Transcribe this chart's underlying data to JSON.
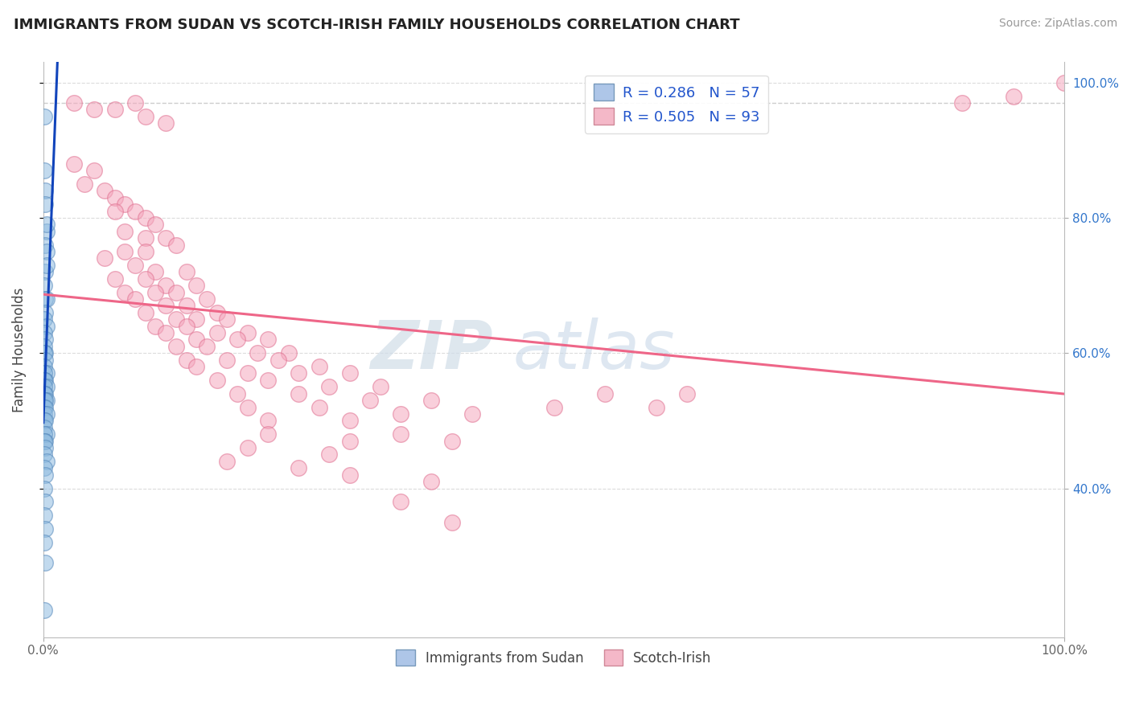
{
  "title": "IMMIGRANTS FROM SUDAN VS SCOTCH-IRISH FAMILY HOUSEHOLDS CORRELATION CHART",
  "source": "Source: ZipAtlas.com",
  "ylabel": "Family Households",
  "blue_color": "#90bce0",
  "pink_color": "#f5a8be",
  "blue_edge": "#5588bb",
  "pink_edge": "#e07090",
  "trend_blue": "#1144bb",
  "trend_pink": "#ee6688",
  "watermark_zip": "ZIP",
  "watermark_atlas": "atlas",
  "sudan_points": [
    [
      0.001,
      0.95
    ],
    [
      0.001,
      0.87
    ],
    [
      0.002,
      0.84
    ],
    [
      0.002,
      0.82
    ],
    [
      0.003,
      0.78
    ],
    [
      0.003,
      0.79
    ],
    [
      0.002,
      0.76
    ],
    [
      0.003,
      0.75
    ],
    [
      0.002,
      0.72
    ],
    [
      0.003,
      0.73
    ],
    [
      0.001,
      0.7
    ],
    [
      0.002,
      0.68
    ],
    [
      0.003,
      0.68
    ],
    [
      0.002,
      0.66
    ],
    [
      0.001,
      0.65
    ],
    [
      0.003,
      0.64
    ],
    [
      0.001,
      0.63
    ],
    [
      0.002,
      0.62
    ],
    [
      0.001,
      0.61
    ],
    [
      0.002,
      0.6
    ],
    [
      0.001,
      0.6
    ],
    [
      0.002,
      0.59
    ],
    [
      0.001,
      0.58
    ],
    [
      0.003,
      0.57
    ],
    [
      0.001,
      0.57
    ],
    [
      0.002,
      0.56
    ],
    [
      0.001,
      0.56
    ],
    [
      0.003,
      0.55
    ],
    [
      0.001,
      0.55
    ],
    [
      0.002,
      0.54
    ],
    [
      0.001,
      0.54
    ],
    [
      0.003,
      0.53
    ],
    [
      0.001,
      0.53
    ],
    [
      0.002,
      0.53
    ],
    [
      0.001,
      0.52
    ],
    [
      0.002,
      0.52
    ],
    [
      0.001,
      0.51
    ],
    [
      0.003,
      0.51
    ],
    [
      0.001,
      0.5
    ],
    [
      0.002,
      0.5
    ],
    [
      0.001,
      0.49
    ],
    [
      0.003,
      0.48
    ],
    [
      0.001,
      0.48
    ],
    [
      0.002,
      0.47
    ],
    [
      0.001,
      0.47
    ],
    [
      0.002,
      0.46
    ],
    [
      0.001,
      0.45
    ],
    [
      0.003,
      0.44
    ],
    [
      0.001,
      0.43
    ],
    [
      0.002,
      0.42
    ],
    [
      0.001,
      0.4
    ],
    [
      0.002,
      0.38
    ],
    [
      0.001,
      0.36
    ],
    [
      0.002,
      0.34
    ],
    [
      0.001,
      0.32
    ],
    [
      0.002,
      0.29
    ],
    [
      0.001,
      0.22
    ]
  ],
  "scotch_points": [
    [
      0.03,
      0.97
    ],
    [
      0.05,
      0.96
    ],
    [
      0.07,
      0.96
    ],
    [
      0.09,
      0.97
    ],
    [
      0.1,
      0.95
    ],
    [
      0.12,
      0.94
    ],
    [
      0.03,
      0.88
    ],
    [
      0.05,
      0.87
    ],
    [
      0.04,
      0.85
    ],
    [
      0.06,
      0.84
    ],
    [
      0.07,
      0.83
    ],
    [
      0.08,
      0.82
    ],
    [
      0.07,
      0.81
    ],
    [
      0.09,
      0.81
    ],
    [
      0.1,
      0.8
    ],
    [
      0.11,
      0.79
    ],
    [
      0.08,
      0.78
    ],
    [
      0.1,
      0.77
    ],
    [
      0.12,
      0.77
    ],
    [
      0.13,
      0.76
    ],
    [
      0.08,
      0.75
    ],
    [
      0.1,
      0.75
    ],
    [
      0.06,
      0.74
    ],
    [
      0.09,
      0.73
    ],
    [
      0.11,
      0.72
    ],
    [
      0.14,
      0.72
    ],
    [
      0.07,
      0.71
    ],
    [
      0.1,
      0.71
    ],
    [
      0.12,
      0.7
    ],
    [
      0.15,
      0.7
    ],
    [
      0.08,
      0.69
    ],
    [
      0.11,
      0.69
    ],
    [
      0.13,
      0.69
    ],
    [
      0.16,
      0.68
    ],
    [
      0.09,
      0.68
    ],
    [
      0.12,
      0.67
    ],
    [
      0.14,
      0.67
    ],
    [
      0.17,
      0.66
    ],
    [
      0.1,
      0.66
    ],
    [
      0.13,
      0.65
    ],
    [
      0.15,
      0.65
    ],
    [
      0.18,
      0.65
    ],
    [
      0.11,
      0.64
    ],
    [
      0.14,
      0.64
    ],
    [
      0.17,
      0.63
    ],
    [
      0.2,
      0.63
    ],
    [
      0.12,
      0.63
    ],
    [
      0.15,
      0.62
    ],
    [
      0.19,
      0.62
    ],
    [
      0.22,
      0.62
    ],
    [
      0.13,
      0.61
    ],
    [
      0.16,
      0.61
    ],
    [
      0.21,
      0.6
    ],
    [
      0.24,
      0.6
    ],
    [
      0.14,
      0.59
    ],
    [
      0.18,
      0.59
    ],
    [
      0.23,
      0.59
    ],
    [
      0.27,
      0.58
    ],
    [
      0.15,
      0.58
    ],
    [
      0.2,
      0.57
    ],
    [
      0.25,
      0.57
    ],
    [
      0.3,
      0.57
    ],
    [
      0.17,
      0.56
    ],
    [
      0.22,
      0.56
    ],
    [
      0.28,
      0.55
    ],
    [
      0.33,
      0.55
    ],
    [
      0.19,
      0.54
    ],
    [
      0.25,
      0.54
    ],
    [
      0.32,
      0.53
    ],
    [
      0.38,
      0.53
    ],
    [
      0.2,
      0.52
    ],
    [
      0.27,
      0.52
    ],
    [
      0.35,
      0.51
    ],
    [
      0.42,
      0.51
    ],
    [
      0.22,
      0.5
    ],
    [
      0.3,
      0.5
    ],
    [
      0.22,
      0.48
    ],
    [
      0.35,
      0.48
    ],
    [
      0.3,
      0.47
    ],
    [
      0.4,
      0.47
    ],
    [
      0.2,
      0.46
    ],
    [
      0.28,
      0.45
    ],
    [
      0.18,
      0.44
    ],
    [
      0.25,
      0.43
    ],
    [
      0.3,
      0.42
    ],
    [
      0.38,
      0.41
    ],
    [
      0.35,
      0.38
    ],
    [
      0.4,
      0.35
    ],
    [
      0.5,
      0.52
    ],
    [
      0.55,
      0.54
    ],
    [
      0.6,
      0.52
    ],
    [
      0.63,
      0.54
    ],
    [
      0.9,
      0.97
    ],
    [
      0.95,
      0.98
    ],
    [
      1.0,
      1.0
    ]
  ],
  "ref_line_x": [
    0.0,
    1.0
  ],
  "ref_line_y": [
    0.97,
    0.97
  ],
  "ylim": [
    0.18,
    1.03
  ],
  "xlim": [
    0.0,
    1.0
  ],
  "yticks": [
    0.4,
    0.6,
    0.8,
    1.0
  ],
  "ytick_labels_right": [
    "40.0%",
    "60.0%",
    "80.0%",
    "100.0%"
  ],
  "xticks": [
    0.0,
    1.0
  ],
  "xtick_labels": [
    "0.0%",
    "100.0%"
  ]
}
